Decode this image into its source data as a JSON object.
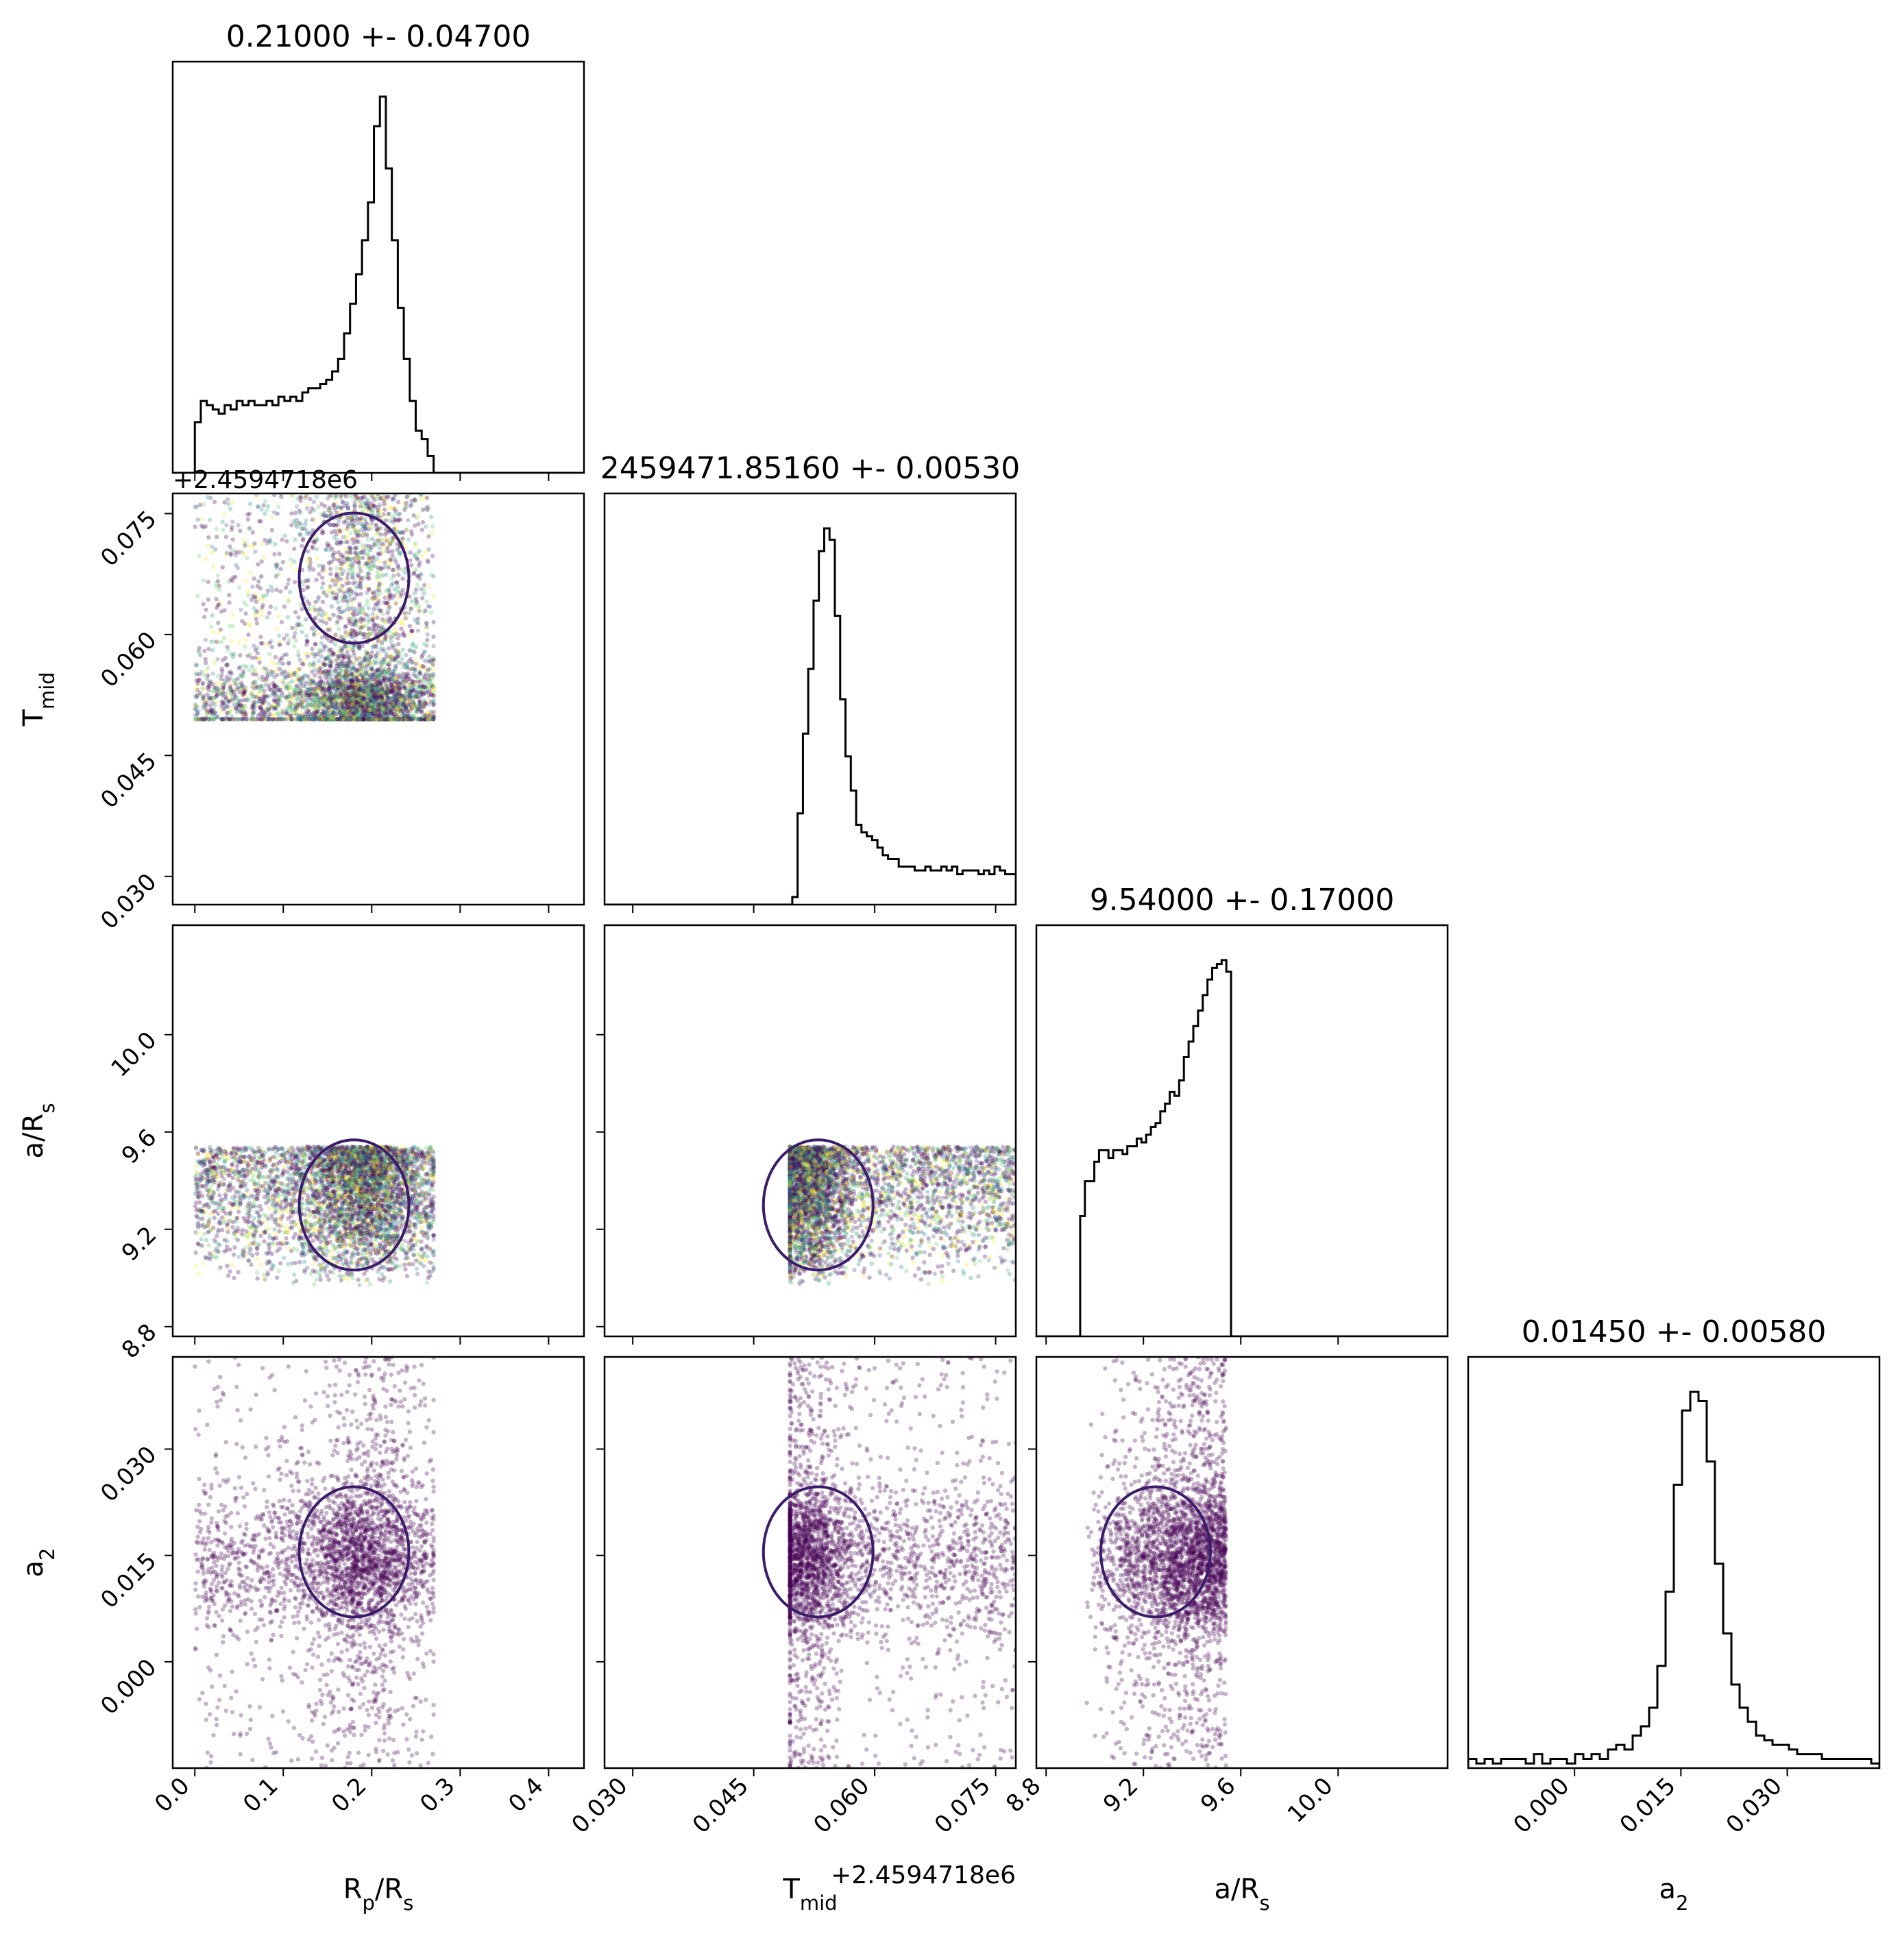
{
  "chart_data": {
    "type": "corner",
    "parameters": [
      {
        "key": "rprs",
        "label_parts": [
          [
            "R",
            ""
          ],
          [
            "p",
            "sub"
          ],
          [
            "/R",
            ""
          ],
          [
            "s",
            "sub"
          ]
        ],
        "axis_range": [
          -0.025,
          0.44
        ],
        "ticks": [
          "0.0",
          "0.1",
          "0.2",
          "0.3",
          "0.4"
        ]
      },
      {
        "key": "tmid",
        "label_parts": [
          [
            "T",
            ""
          ],
          [
            "mid",
            "sub"
          ]
        ],
        "axis_range": [
          0.0265,
          0.0775
        ],
        "ticks": [
          "0.030",
          "0.045",
          "0.060",
          "0.075"
        ],
        "offset_text": "+2.4594718e6"
      },
      {
        "key": "ars",
        "label_parts": [
          [
            "a/R",
            ""
          ],
          [
            "s",
            "sub"
          ]
        ],
        "axis_range": [
          8.76,
          10.45
        ],
        "ticks": [
          "8.8",
          "9.2",
          "9.6",
          "10.0"
        ]
      },
      {
        "key": "a2",
        "label_parts": [
          [
            "a",
            ""
          ],
          [
            "2",
            "sub"
          ]
        ],
        "axis_range": [
          -0.015,
          0.043
        ],
        "ticks": [
          "0.000",
          "0.015",
          "0.030"
        ]
      }
    ],
    "titles": [
      "0.21000 +- 0.04700",
      "2459471.85160 +- 0.00530",
      "9.54000 +- 0.17000",
      "0.01450 +- 0.00580"
    ],
    "histograms": [
      {
        "param": "rprs",
        "edges": [
          0.0,
          0.27
        ],
        "counts": [
          12,
          17,
          16,
          15,
          14,
          16,
          15,
          17,
          16,
          17,
          16,
          16,
          17,
          16,
          18,
          17,
          18,
          17,
          19,
          20,
          20,
          21,
          22,
          24,
          27,
          33,
          40,
          47,
          55,
          64,
          82,
          89,
          72,
          55,
          39,
          27,
          17,
          10,
          8,
          4
        ]
      },
      {
        "param": "tmid",
        "edges": [
          0.028,
          0.0775
        ],
        "counts": [
          0,
          0,
          0,
          0,
          0,
          0,
          0,
          0,
          0,
          0,
          0,
          0,
          0,
          0,
          0,
          0,
          0,
          0,
          0,
          0,
          0,
          0,
          0,
          0,
          0,
          0,
          0,
          0,
          0,
          0,
          0,
          0,
          0,
          2,
          24,
          45,
          62,
          80,
          93,
          99,
          96,
          76,
          54,
          39,
          30,
          21,
          19,
          18,
          17,
          15,
          13,
          12,
          12,
          10,
          10,
          10,
          9,
          9,
          10,
          9,
          9,
          10,
          9,
          10,
          8,
          9,
          9,
          9,
          8,
          9,
          8,
          10,
          9,
          8,
          8
        ]
      },
      {
        "param": "ars",
        "edges": [
          8.94,
          9.56
        ],
        "counts": [
          31,
          40,
          40,
          45,
          48,
          48,
          46,
          48,
          48,
          47,
          49,
          49,
          51,
          50,
          52,
          54,
          55,
          58,
          60,
          63,
          62,
          66,
          72,
          76,
          80,
          84,
          88,
          92,
          95,
          96,
          97,
          94
        ]
      },
      {
        "param": "a2",
        "edges": [
          -0.015,
          0.043
        ],
        "counts": [
          2,
          1,
          2,
          1,
          2,
          2,
          2,
          1,
          3,
          1,
          2,
          2,
          1,
          3,
          2,
          3,
          2,
          4,
          5,
          4,
          7,
          9,
          13,
          22,
          38,
          61,
          77,
          81,
          79,
          66,
          44,
          29,
          18,
          13,
          10,
          7,
          6,
          5,
          5,
          4,
          3,
          3,
          3,
          2,
          2,
          2,
          2,
          2,
          2,
          1
        ]
      }
    ],
    "scatter_panels": [
      {
        "x": "rprs",
        "y": "tmid",
        "points": 4500,
        "color": "viridis",
        "contour": true
      },
      {
        "x": "rprs",
        "y": "ars",
        "points": 4500,
        "color": "viridis",
        "contour": true
      },
      {
        "x": "tmid",
        "y": "ars",
        "points": 4500,
        "color": "viridis",
        "contour": true
      },
      {
        "x": "rprs",
        "y": "a2",
        "points": 3000,
        "color": "#440154",
        "contour": true
      },
      {
        "x": "tmid",
        "y": "a2",
        "points": 3000,
        "color": "#440154",
        "contour": true
      },
      {
        "x": "ars",
        "y": "a2",
        "points": 3000,
        "color": "#440154",
        "contour": true
      }
    ],
    "colors": {
      "contour": "#3b1c6b",
      "dark_points": "#440154",
      "histogram": "#000000"
    }
  }
}
